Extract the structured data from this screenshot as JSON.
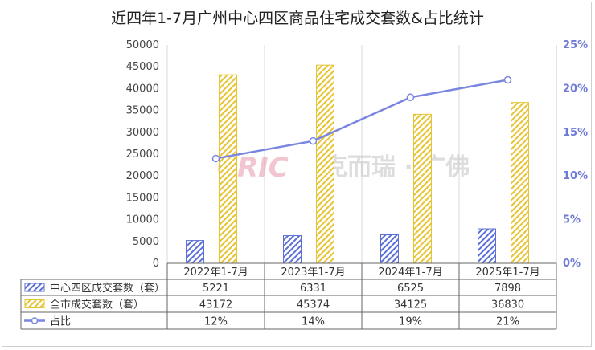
{
  "chart_data": {
    "type": "bar",
    "title": "近四年1-7月广州中心四区商品住宅成交套数&占比统计",
    "categories": [
      "2022年1-7月",
      "2023年1-7月",
      "2024年1-7月",
      "2025年1-7月"
    ],
    "series": [
      {
        "name": "中心四区成交套数（套）",
        "type": "bar",
        "axis": "left",
        "values": [
          5221,
          6331,
          6525,
          7898
        ],
        "labels": [
          "5221",
          "6331",
          "6525",
          "7898"
        ],
        "color": "#5b6fd6",
        "pattern": "hatched"
      },
      {
        "name": "全市成交套数（套）",
        "type": "bar",
        "axis": "left",
        "values": [
          43172,
          45374,
          34125,
          36830
        ],
        "labels": [
          "43172",
          "45374",
          "34125",
          "36830"
        ],
        "color": "#e6c431",
        "pattern": "hatched"
      },
      {
        "name": "占比",
        "type": "line",
        "axis": "right",
        "values": [
          12,
          14,
          19,
          21
        ],
        "labels": [
          "12%",
          "14%",
          "19%",
          "21%"
        ],
        "color": "#7b86e0"
      }
    ],
    "y_left": {
      "min": 0,
      "max": 50000,
      "ticks": [
        "0",
        "5000",
        "10000",
        "15000",
        "20000",
        "25000",
        "30000",
        "35000",
        "40000",
        "45000",
        "50000"
      ]
    },
    "y_right": {
      "min": 0,
      "max": 25,
      "ticks": [
        "0%",
        "5%",
        "10%",
        "15%",
        "20%",
        "25%"
      ]
    },
    "data_table": true,
    "grid": "vertical separators",
    "legend_position": "data table"
  },
  "watermark": {
    "mark": "CRIC",
    "text": "克而瑞 · 广佛"
  }
}
